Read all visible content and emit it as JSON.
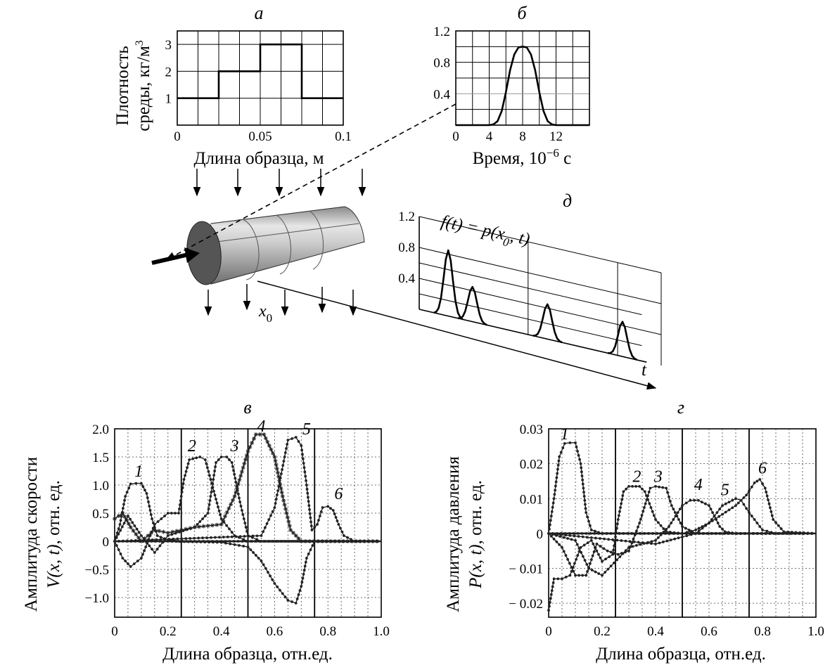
{
  "chart_data": [
    {
      "panel": "а",
      "type": "line",
      "ylabel_1": "Плотность",
      "ylabel_2": "среды, кг/м",
      "ylabel_sup": "3",
      "xlabel": "Длина образца, м",
      "xlim": [
        0,
        0.1
      ],
      "ylim": [
        0,
        3.5
      ],
      "xticks": [
        "0",
        "0.05",
        "0.1"
      ],
      "yticks": [
        "1",
        "2",
        "3"
      ],
      "series": [
        {
          "x": [
            0,
            0.025,
            0.025,
            0.05,
            0.05,
            0.075,
            0.075,
            0.1
          ],
          "y": [
            1,
            1,
            2,
            2,
            3,
            3,
            1,
            1
          ]
        }
      ]
    },
    {
      "panel": "б",
      "type": "line",
      "xlabel": "Время, 10",
      "xlabel_sup": "−6",
      "xlabel_tail": " с",
      "xlim": [
        0,
        16
      ],
      "ylim": [
        0,
        1.2
      ],
      "xticks": [
        "0",
        "4",
        "8",
        "12"
      ],
      "yticks": [
        "1.2",
        "0.8",
        "0.4"
      ],
      "series": [
        {
          "x": [
            0,
            4,
            4.5,
            5,
            5.5,
            6,
            6.5,
            7,
            7.5,
            8,
            8.5,
            9,
            9.5,
            10,
            10.5,
            11,
            11.5,
            12,
            16
          ],
          "y": [
            0,
            0,
            0.01,
            0.05,
            0.18,
            0.42,
            0.7,
            0.9,
            0.99,
            1.0,
            0.99,
            0.9,
            0.7,
            0.42,
            0.18,
            0.05,
            0.01,
            0,
            0
          ]
        }
      ]
    },
    {
      "panel": "в",
      "type": "line",
      "ylabel_1": "Амплитуда скорости",
      "ylabel_2": ", отн. ед.",
      "ylabel_var": "V(x, t)",
      "xlabel": "Длина образца, отн.ед.",
      "xlim": [
        0,
        1
      ],
      "ylim": [
        -1.35,
        2
      ],
      "xticks": [
        "0",
        "0.2",
        "0.4",
        "0.6",
        "0.8",
        "1.0"
      ],
      "yticks": [
        "2.0",
        "1.5",
        "1.0",
        "0.5",
        "0",
        "−0.5",
        "−1.0"
      ],
      "boundaries": [
        0.25,
        0.5,
        0.75
      ],
      "series": [
        {
          "name": "1",
          "label_x": 0.09,
          "label_y": 1.15,
          "x": [
            0,
            0.02,
            0.04,
            0.06,
            0.08,
            0.1,
            0.12,
            0.14,
            0.16,
            0.2,
            0.24,
            0.3,
            0.4,
            1.0
          ],
          "y": [
            0,
            0.3,
            0.8,
            1.02,
            1.03,
            1.03,
            0.85,
            0.4,
            0.1,
            0.02,
            0.0,
            0,
            0,
            0
          ]
        },
        {
          "name": "2",
          "label_x": 0.29,
          "label_y": 1.6,
          "x": [
            0,
            0.03,
            0.06,
            0.1,
            0.15,
            0.2,
            0.24,
            0.26,
            0.28,
            0.32,
            0.34,
            0.36,
            0.4,
            0.45,
            0.5,
            1.0
          ],
          "y": [
            0,
            -0.3,
            -0.45,
            -0.3,
            0.3,
            0.5,
            0.5,
            1.1,
            1.45,
            1.5,
            1.45,
            1.1,
            0.4,
            0.1,
            0,
            0
          ]
        },
        {
          "name": "3",
          "label_x": 0.45,
          "label_y": 1.6,
          "x": [
            0,
            0.05,
            0.1,
            0.15,
            0.2,
            0.3,
            0.35,
            0.38,
            0.4,
            0.42,
            0.44,
            0.47,
            0.5,
            0.55,
            1.0
          ],
          "y": [
            0,
            0.45,
            0.1,
            -0.2,
            0.1,
            0.25,
            0.5,
            1.4,
            1.5,
            1.5,
            1.4,
            0.7,
            0.1,
            0,
            0
          ]
        },
        {
          "name": "4",
          "label_x": 0.55,
          "label_y": 1.95,
          "x": [
            0,
            0.03,
            0.06,
            0.1,
            0.15,
            0.2,
            0.3,
            0.4,
            0.45,
            0.5,
            0.53,
            0.56,
            0.6,
            0.63,
            0.66,
            0.7,
            1.0
          ],
          "y": [
            0.4,
            0.5,
            0.25,
            0.0,
            0.2,
            0.15,
            0.25,
            0.3,
            0.8,
            1.6,
            1.9,
            1.9,
            1.5,
            0.8,
            0.2,
            0,
            0
          ]
        },
        {
          "name": "5",
          "label_x": 0.72,
          "label_y": 1.9,
          "x": [
            0,
            0.2,
            0.4,
            0.5,
            0.55,
            0.6,
            0.65,
            0.68,
            0.7,
            0.72,
            0.75,
            1.0
          ],
          "y": [
            0,
            0,
            -0.02,
            -0.1,
            -0.35,
            -0.75,
            -1.05,
            -1.1,
            -0.8,
            -0.3,
            0,
            0
          ]
        },
        {
          "name": "6",
          "label_x": 0.84,
          "label_y": 0.75,
          "x": [
            0,
            0.55,
            0.6,
            0.65,
            0.68,
            0.7,
            0.72,
            0.74,
            0.76,
            0.78,
            0.8,
            0.82,
            0.84,
            0.86,
            0.9,
            1.0
          ],
          "y": [
            0,
            0.1,
            0.6,
            1.8,
            1.85,
            1.7,
            1.0,
            0.2,
            0.3,
            0.6,
            0.62,
            0.55,
            0.3,
            0.1,
            0,
            0
          ]
        }
      ]
    },
    {
      "panel": "г",
      "type": "line",
      "ylabel_1": "Амплитуда давления",
      "ylabel_2": ", отн. ед.",
      "ylabel_var": "P(x, t)",
      "xlabel": "Длина образца, отн.ед.",
      "xlim": [
        0,
        1
      ],
      "ylim": [
        -0.024,
        0.03
      ],
      "xticks": [
        "0",
        "0.2",
        "0.4",
        "0.6",
        "0.8",
        "1.0"
      ],
      "yticks": [
        "0.03",
        "0.02",
        "0.01",
        "0",
        "− 0.01",
        "− 0.02"
      ],
      "boundaries": [
        0.25,
        0.5,
        0.75
      ],
      "series": [
        {
          "name": "1",
          "label_x": 0.06,
          "label_y": 0.027,
          "x": [
            0,
            0.02,
            0.04,
            0.06,
            0.08,
            0.1,
            0.12,
            0.14,
            0.16,
            0.2,
            1.0
          ],
          "y": [
            0,
            0.01,
            0.022,
            0.0258,
            0.026,
            0.026,
            0.02,
            0.006,
            0.001,
            0,
            0
          ]
        },
        {
          "name": "2",
          "label_x": 0.33,
          "label_y": 0.0148,
          "x": [
            0,
            0.02,
            0.05,
            0.08,
            0.12,
            0.16,
            0.2,
            0.24,
            0.26,
            0.28,
            0.3,
            0.34,
            0.36,
            0.4,
            0.44,
            0.5,
            1.0
          ],
          "y": [
            -0.022,
            -0.013,
            -0.013,
            -0.012,
            -0.004,
            -0.002,
            -0.008,
            -0.006,
            0.004,
            0.012,
            0.0135,
            0.0135,
            0.012,
            0.004,
            0.0005,
            0,
            0
          ]
        },
        {
          "name": "3",
          "label_x": 0.41,
          "label_y": 0.0148,
          "x": [
            0,
            0.05,
            0.1,
            0.14,
            0.18,
            0.22,
            0.26,
            0.3,
            0.34,
            0.38,
            0.4,
            0.44,
            0.46,
            0.5,
            0.55,
            1.0
          ],
          "y": [
            0,
            -0.004,
            -0.012,
            -0.012,
            -0.003,
            -0.005,
            -0.006,
            -0.005,
            0.003,
            0.013,
            0.0135,
            0.013,
            0.008,
            0.002,
            0,
            0
          ]
        },
        {
          "name": "4",
          "label_x": 0.56,
          "label_y": 0.0125,
          "x": [
            0,
            0.1,
            0.15,
            0.2,
            0.3,
            0.4,
            0.45,
            0.5,
            0.53,
            0.56,
            0.6,
            0.64,
            0.66,
            0.7,
            1.0
          ],
          "y": [
            0,
            -0.002,
            -0.01,
            -0.012,
            -0.004,
            -0.002,
            0.002,
            0.008,
            0.0095,
            0.0095,
            0.008,
            0.002,
            0.0005,
            0,
            0
          ]
        },
        {
          "name": "5",
          "label_x": 0.66,
          "label_y": 0.011,
          "x": [
            0,
            0.4,
            0.5,
            0.55,
            0.6,
            0.65,
            0.7,
            0.72,
            0.75,
            0.8,
            0.85,
            1.0
          ],
          "y": [
            0,
            -0.003,
            -0.001,
            0.0,
            0.003,
            0.008,
            0.01,
            0.0095,
            0.006,
            0.001,
            0,
            0
          ]
        },
        {
          "name": "6",
          "label_x": 0.8,
          "label_y": 0.0172,
          "x": [
            0,
            0.5,
            0.55,
            0.6,
            0.65,
            0.7,
            0.74,
            0.77,
            0.79,
            0.81,
            0.84,
            0.88,
            1.0
          ],
          "y": [
            0,
            0,
            0.001,
            0.003,
            0.0055,
            0.008,
            0.011,
            0.0145,
            0.0155,
            0.013,
            0.004,
            0.0005,
            0
          ]
        }
      ]
    },
    {
      "panel": "д",
      "type": "line",
      "formula_lhs": "f(t) = p(x",
      "formula_sub": "0",
      "formula_rhs": ", t)",
      "axis_t": "t",
      "yticks": [
        "1.2",
        "0.8",
        "0.4"
      ],
      "pulses": [
        {
          "t": 0.12,
          "h": 0.85
        },
        {
          "t": 0.22,
          "h": 0.45
        },
        {
          "t": 0.53,
          "h": 0.45
        },
        {
          "t": 0.84,
          "h": 0.45
        }
      ]
    }
  ],
  "diagram": {
    "x0_base": "x",
    "x0_sub": "0"
  }
}
